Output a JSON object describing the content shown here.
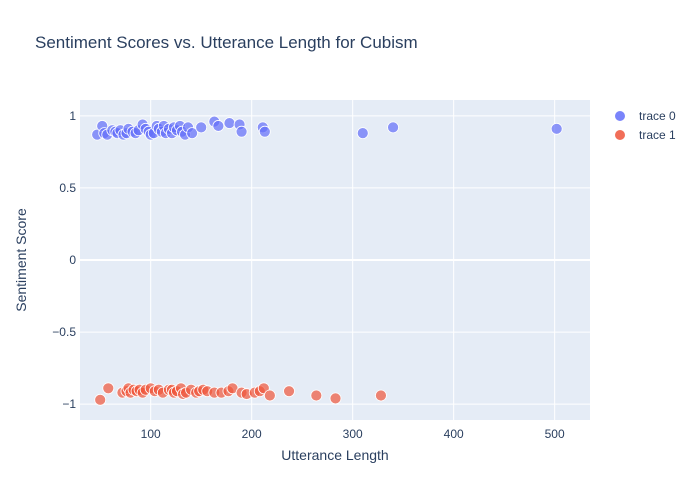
{
  "chart_data": {
    "type": "scatter",
    "title": "Sentiment Scores vs. Utterance Length for Cubism",
    "xlabel": "Utterance Length",
    "ylabel": "Sentiment Score",
    "xlim": [
      30,
      535
    ],
    "ylim": [
      -1.11,
      1.11
    ],
    "x_ticks": [
      100,
      200,
      300,
      400,
      500
    ],
    "y_ticks": [
      -1,
      -0.5,
      0,
      0.5,
      1
    ],
    "x_tick_labels": [
      "100",
      "200",
      "300",
      "400",
      "500"
    ],
    "y_tick_labels": [
      "−1",
      "−0.5",
      "0",
      "0.5",
      "1"
    ],
    "grid": true,
    "legend_position": "top-right",
    "series": [
      {
        "name": "trace 0",
        "color": "#636efa",
        "x": [
          47,
          52,
          54,
          57,
          62,
          65,
          67,
          70,
          73,
          76,
          78,
          82,
          85,
          88,
          92,
          95,
          98,
          100,
          103,
          106,
          108,
          111,
          113,
          115,
          118,
          121,
          123,
          126,
          129,
          131,
          134,
          137,
          141,
          150,
          163,
          167,
          178,
          188,
          190,
          211,
          213,
          310,
          340,
          502
        ],
        "y": [
          0.87,
          0.93,
          0.88,
          0.87,
          0.9,
          0.89,
          0.88,
          0.9,
          0.87,
          0.88,
          0.91,
          0.89,
          0.88,
          0.9,
          0.94,
          0.91,
          0.89,
          0.87,
          0.88,
          0.93,
          0.91,
          0.89,
          0.93,
          0.88,
          0.91,
          0.88,
          0.92,
          0.9,
          0.93,
          0.89,
          0.87,
          0.92,
          0.88,
          0.92,
          0.96,
          0.93,
          0.95,
          0.94,
          0.89,
          0.92,
          0.89,
          0.88,
          0.92,
          0.91
        ]
      },
      {
        "name": "trace 1",
        "color": "#ef553b",
        "x": [
          50,
          58,
          72,
          76,
          78,
          80,
          83,
          86,
          89,
          92,
          95,
          100,
          104,
          108,
          112,
          118,
          121,
          123,
          126,
          130,
          132,
          135,
          140,
          145,
          148,
          152,
          156,
          163,
          170,
          177,
          181,
          190,
          195,
          203,
          208,
          212,
          218,
          237,
          264,
          283,
          328
        ],
        "y": [
          -0.97,
          -0.89,
          -0.92,
          -0.91,
          -0.89,
          -0.92,
          -0.9,
          -0.91,
          -0.9,
          -0.92,
          -0.9,
          -0.89,
          -0.91,
          -0.9,
          -0.92,
          -0.9,
          -0.9,
          -0.92,
          -0.91,
          -0.89,
          -0.93,
          -0.92,
          -0.9,
          -0.92,
          -0.91,
          -0.9,
          -0.91,
          -0.92,
          -0.92,
          -0.91,
          -0.89,
          -0.92,
          -0.93,
          -0.92,
          -0.91,
          -0.89,
          -0.94,
          -0.91,
          -0.94,
          -0.96,
          -0.94
        ]
      }
    ]
  }
}
